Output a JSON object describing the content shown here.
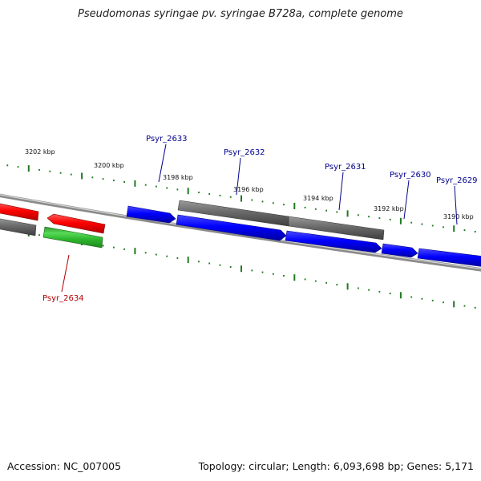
{
  "title": "Pseudomonas syringae pv. syringae B728a, complete genome",
  "footer": {
    "accession": "Accession: NC_007005",
    "summary": "Topology: circular; Length: 6,093,698 bp; Genes: 5,171"
  },
  "colors": {
    "forward_gene": "#0000ff",
    "reverse_gene": "#ff0000",
    "rna_gene": "#2db52d",
    "feature": "#6e6e6e",
    "ticks": "#1f7a1f",
    "forward_label": "#00008b",
    "reverse_label": "#b00000"
  },
  "ticks": [
    {
      "label": "3202 kbp"
    },
    {
      "label": "3200 kbp"
    },
    {
      "label": "3198 kbp"
    },
    {
      "label": "3196 kbp"
    },
    {
      "label": "3194 kbp"
    },
    {
      "label": "3192 kbp"
    },
    {
      "label": "3190 kbp"
    }
  ],
  "genes": [
    {
      "label": "Psyr_2634"
    },
    {
      "label": "Psyr_2633"
    },
    {
      "label": "Psyr_2632"
    },
    {
      "label": "Psyr_2631"
    },
    {
      "label": "Psyr_2630"
    },
    {
      "label": "Psyr_2629"
    }
  ]
}
